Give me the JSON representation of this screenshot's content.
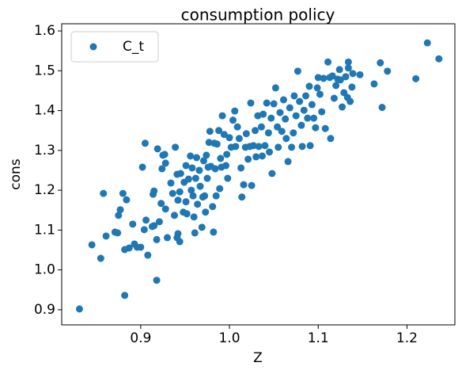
{
  "chart_data": {
    "type": "scatter",
    "title": "consumption policy",
    "x_label": "Z",
    "y_label": "cons",
    "xlim": [
      0.811,
      1.254
    ],
    "ylim": [
      0.862,
      1.618
    ],
    "xticks": [
      0.9,
      {
        "value": 1,
        "label": "1.0"
      },
      1.1,
      1.2
    ],
    "yticks": [
      0.9,
      {
        "value": 1,
        "label": "1.0"
      },
      1.1,
      1.2,
      1.3,
      1.4,
      1.5,
      1.6
    ],
    "legend": "upper left",
    "series": [
      {
        "name": "C_t",
        "color": "#1f77b4",
        "x": [
          0.831,
          0.845,
          0.855,
          0.858,
          0.861,
          0.871,
          0.874,
          0.877,
          0.875,
          0.88,
          0.882,
          0.884,
          0.882,
          0.887,
          0.891,
          0.893,
          0.896,
          0.9,
          0.904,
          0.902,
          0.905,
          0.906,
          0.908,
          0.913,
          0.915,
          0.914,
          0.915,
          0.918,
          0.919,
          0.918,
          0.921,
          0.923,
          0.925,
          0.927,
          0.928,
          0.924,
          0.93,
          0.928,
          0.934,
          0.936,
          0.938,
          0.939,
          0.941,
          0.941,
          0.942,
          0.944,
          0.942,
          0.945,
          0.944,
          0.948,
          0.949,
          0.951,
          0.951,
          0.952,
          0.954,
          0.956,
          0.957,
          0.958,
          0.959,
          0.96,
          0.961,
          0.962,
          0.963,
          0.964,
          0.966,
          0.967,
          0.969,
          0.97,
          0.971,
          0.972,
          0.973,
          0.974,
          0.975,
          0.976,
          0.977,
          0.978,
          0.979,
          0.981,
          0.982,
          0.983,
          0.984,
          0.985,
          0.986,
          0.988,
          0.989,
          0.99,
          0.991,
          0.992,
          0.994,
          0.996,
          0.997,
          0.998,
          1.0,
          1.002,
          1.004,
          1.006,
          1.007,
          1.009,
          1.011,
          1.013,
          1.014,
          1.016,
          1.018,
          1.019,
          1.021,
          1.023,
          1.024,
          1.025,
          1.027,
          1.029,
          1.03,
          1.032,
          1.033,
          1.036,
          1.037,
          1.038,
          1.04,
          1.042,
          1.044,
          1.045,
          1.047,
          1.048,
          1.05,
          1.052,
          1.054,
          1.055,
          1.057,
          1.059,
          1.061,
          1.063,
          1.064,
          1.066,
          1.068,
          1.07,
          1.072,
          1.073,
          1.075,
          1.077,
          1.079,
          1.081,
          1.082,
          1.084,
          1.086,
          1.088,
          1.09,
          1.091,
          1.093,
          1.095,
          1.097,
          1.099,
          1.1,
          1.102,
          1.104,
          1.106,
          1.108,
          1.111,
          1.113,
          1.114,
          1.116,
          1.118,
          1.12,
          1.122,
          1.124,
          1.125,
          1.127,
          1.129,
          1.131,
          1.133,
          1.134,
          1.136,
          1.139,
          1.134,
          1.138,
          1.17,
          1.172,
          1.147,
          1.163,
          1.178,
          1.21,
          1.223,
          1.236
        ],
        "values": [
          0.902,
          1.063,
          1.029,
          1.192,
          1.085,
          1.095,
          1.093,
          1.151,
          1.137,
          1.192,
          0.936,
          1.176,
          1.051,
          1.055,
          1.115,
          1.065,
          1.057,
          1.057,
          1.101,
          1.258,
          1.318,
          1.125,
          1.037,
          1.109,
          1.111,
          1.19,
          1.198,
          1.076,
          1.304,
          0.974,
          1.121,
          1.167,
          1.288,
          1.29,
          1.268,
          1.254,
          1.081,
          1.153,
          1.218,
          1.192,
          1.137,
          1.308,
          1.24,
          1.081,
          1.175,
          1.196,
          1.091,
          1.242,
          1.071,
          1.145,
          1.22,
          1.262,
          1.171,
          1.141,
          1.228,
          1.286,
          1.2,
          1.256,
          1.186,
          1.133,
          1.093,
          1.23,
          1.282,
          1.165,
          1.25,
          1.21,
          1.107,
          1.183,
          1.274,
          1.186,
          1.145,
          1.288,
          1.23,
          1.258,
          1.32,
          1.348,
          1.26,
          1.159,
          1.095,
          1.318,
          1.254,
          1.186,
          1.316,
          1.35,
          1.204,
          1.28,
          1.258,
          1.387,
          1.34,
          1.262,
          1.29,
          1.23,
          1.332,
          1.308,
          1.376,
          1.399,
          1.31,
          1.359,
          1.33,
          1.256,
          1.183,
          1.214,
          1.308,
          1.342,
          1.278,
          1.31,
          1.419,
          1.212,
          1.312,
          1.35,
          1.284,
          1.387,
          1.31,
          1.359,
          1.286,
          1.391,
          1.312,
          1.419,
          1.344,
          1.296,
          1.381,
          1.242,
          1.417,
          1.457,
          1.359,
          1.308,
          1.395,
          1.348,
          1.427,
          1.379,
          1.33,
          1.272,
          1.407,
          1.308,
          1.344,
          1.437,
          1.387,
          1.499,
          1.423,
          1.363,
          1.31,
          1.401,
          1.437,
          1.381,
          1.461,
          1.312,
          1.415,
          1.381,
          1.357,
          1.457,
          1.483,
          1.441,
          1.397,
          1.481,
          1.355,
          1.522,
          1.483,
          1.33,
          1.487,
          1.431,
          1.463,
          1.479,
          1.503,
          1.477,
          1.409,
          1.445,
          1.485,
          1.433,
          1.507,
          1.423,
          1.493,
          1.522,
          1.459,
          1.52,
          1.408,
          1.49,
          1.467,
          1.499,
          1.48,
          1.57,
          1.53
        ]
      }
    ]
  }
}
